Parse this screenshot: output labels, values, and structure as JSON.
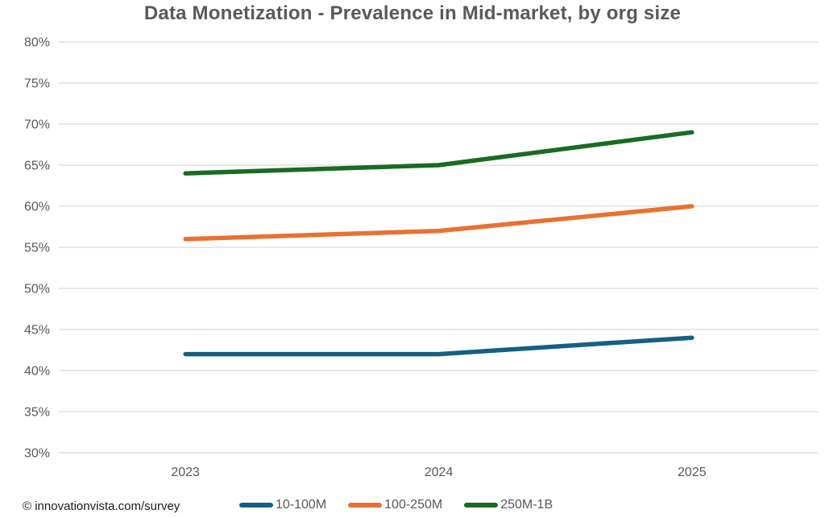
{
  "chart_data": {
    "type": "line",
    "title": "Data Monetization - Prevalence in Mid-market, by org size",
    "categories": [
      "2023",
      "2024",
      "2025"
    ],
    "series": [
      {
        "name": "10-100M",
        "color": "#156082",
        "values": [
          42,
          42,
          44
        ]
      },
      {
        "name": "100-250M",
        "color": "#E97132",
        "values": [
          56,
          57,
          60
        ]
      },
      {
        "name": "250M-1B",
        "color": "#196B24",
        "values": [
          64,
          65,
          69
        ]
      }
    ],
    "ylim": [
      30,
      80
    ],
    "ytick_step": 5,
    "ytick_suffix": "%",
    "grid": "horizontal-only",
    "legend_position": "bottom"
  },
  "footer": {
    "source_text": "© innovationvista.com/survey"
  },
  "colors": {
    "title_text": "#595959",
    "axis_text": "#595959",
    "gridline": "#D9D9D9",
    "footer_text": "#1a1a1a",
    "background": "#FFFFFF"
  }
}
